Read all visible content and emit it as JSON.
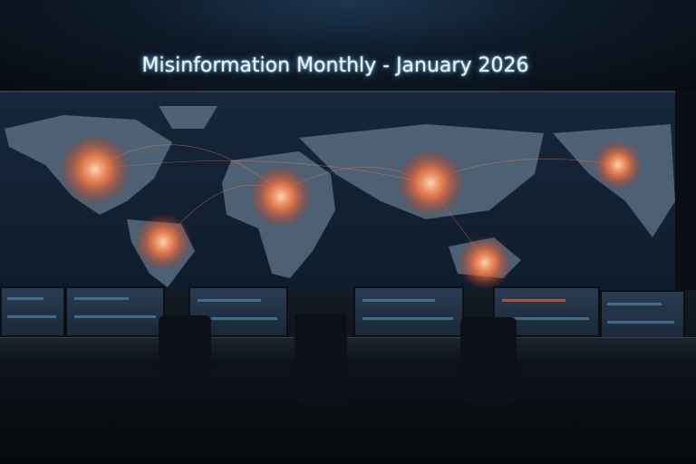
{
  "title": "Misinformation Monthly - January 2026",
  "colors": {
    "hotspot": "#ff8a50",
    "screen": "#16263a",
    "title_glow": "#6ab8ff"
  }
}
